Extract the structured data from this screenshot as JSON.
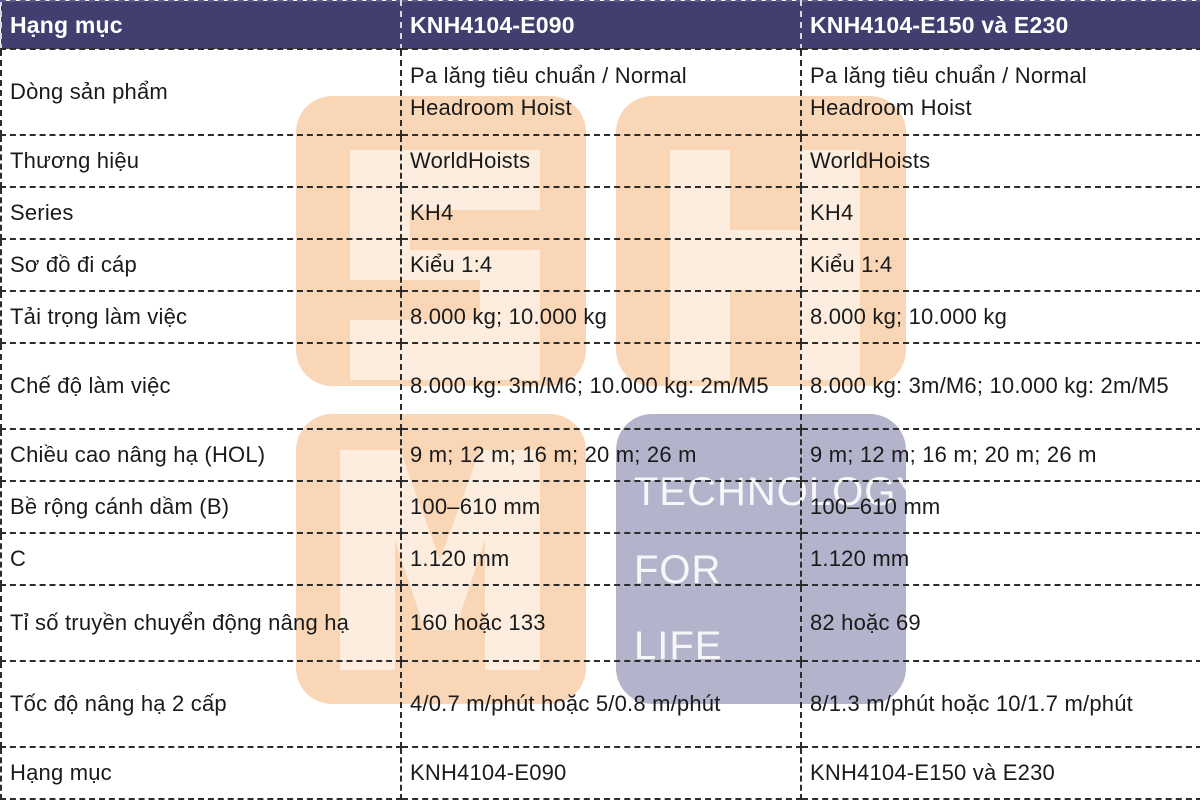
{
  "table": {
    "headers": [
      "Hạng mục",
      "KNH4104-E090",
      "KNH4104-E150 và E230"
    ],
    "rows": [
      [
        "Dòng sản phẩm",
        "Pa lăng tiêu chuẩn / Normal Headroom Hoist",
        "Pa lăng tiêu chuẩn / Normal Headroom Hoist"
      ],
      [
        "Thương hiệu",
        "WorldHoists",
        "WorldHoists"
      ],
      [
        "Series",
        "KH4",
        "KH4"
      ],
      [
        "Sơ đồ đi cáp",
        "Kiểu 1:4",
        "Kiểu 1:4"
      ],
      [
        "Tải trọng làm việc",
        "8.000 kg; 10.000 kg",
        "8.000 kg; 10.000 kg"
      ],
      [
        "Chế độ làm việc",
        "8.000 kg: 3m/M6; 10.000 kg: 2m/M5",
        "8.000 kg: 3m/M6; 10.000 kg: 2m/M5"
      ],
      [
        "Chiều cao nâng hạ (HOL)",
        "9 m; 12 m; 16 m; 20 m; 26 m",
        "9 m; 12 m; 16 m; 20 m; 26 m"
      ],
      [
        "Bề rộng cánh dầm (B)",
        "100–610 mm",
        "100–610 mm"
      ],
      [
        "C",
        "1.120 mm",
        "1.120 mm"
      ],
      [
        "Tỉ số truyền chuyển động nâng hạ",
        "160 hoặc 133",
        "82 hoặc 69"
      ],
      [
        "Tốc độ nâng hạ 2 cấp",
        "4/0.7 m/phút hoặc 5/0.8 m/phút",
        "8/1.3 m/phút hoặc 10/1.7 m/phút"
      ],
      [
        "Hạng mục",
        "KNH4104-E090",
        "KNH4104-E150 và E230"
      ]
    ]
  },
  "watermark": {
    "logo_letters": "SHM",
    "tagline": [
      "TECHNOLOGY",
      "FOR",
      "LIFE"
    ],
    "colors": {
      "orange": "#f9d7b6",
      "slate": "#b3b4cc"
    }
  },
  "colors": {
    "header_bg": "#403f6f",
    "header_text": "#ffffff",
    "border": "#2c2c2c"
  }
}
